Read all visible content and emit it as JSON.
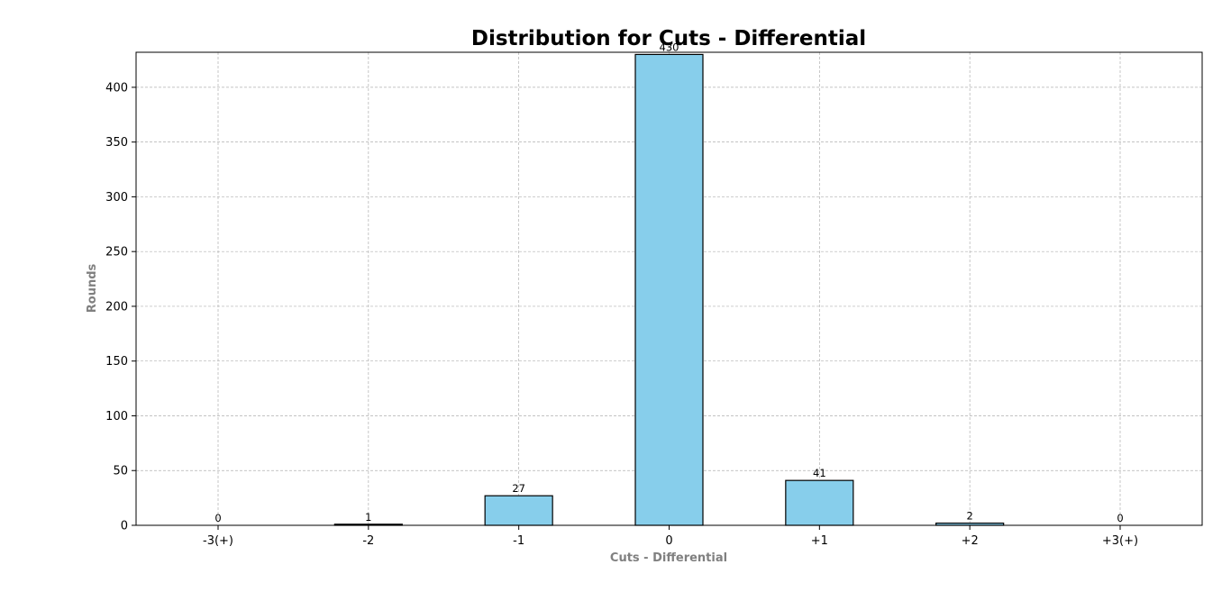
{
  "chart_data": {
    "type": "bar",
    "title": "Distribution for Cuts - Differential",
    "xlabel": "Cuts - Differential",
    "ylabel": "Rounds",
    "categories": [
      "-3(+)",
      "-2",
      "-1",
      "0",
      "+1",
      "+2",
      "+3(+)"
    ],
    "values": [
      0,
      1,
      27,
      430,
      41,
      2,
      0
    ],
    "data_labels": [
      "0",
      "1",
      "27",
      "430",
      "41",
      "2",
      "0"
    ],
    "ylim": [
      0,
      432
    ],
    "yticks": [
      0,
      50,
      100,
      150,
      200,
      250,
      300,
      350,
      400
    ],
    "grid": true,
    "colors": {
      "bar_fill": "#87CEEB",
      "bar_edge": "#000000",
      "grid": "#b0b0b0",
      "axis_label": "#808080",
      "text": "#000000"
    }
  }
}
